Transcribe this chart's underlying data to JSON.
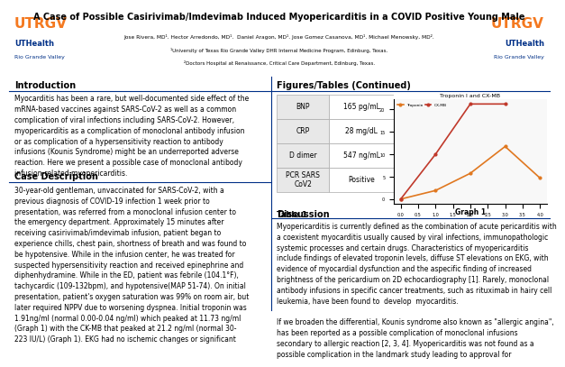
{
  "title": "A Case of Possible Casirivimab/Imdevimab Induced Myopericarditis in a COVID Positive Young Male",
  "authors": "Jose Rivera, MD¹. Hector Arredondo, MD¹.  Daniel Aragon, MD¹. Jose Gomez Casanova, MD¹. Michael Menowsky, MD².",
  "affiliation1": "¹University of Texas Rio Grande Valley DHR Internal Medicine Program, Edinburg, Texas.",
  "affiliation2": "²Doctors Hospital at Renaissance, Critical Care Department, Edinburg, Texas.",
  "header_bg": "#c8ddf0",
  "header_text_color": "#000000",
  "utrgv_text_color": "#f47920",
  "uthealth_text_color": "#003087",
  "section_header_color": "#000000",
  "intro_title": "Introduction",
  "intro_text": "Myocarditis has been a rare, but well-documented side effect of the\nmRNA-based vaccines against SARS-CoV-2 as well as a common\ncomplication of viral infections including SARS-CoV-2. However,\nmyopericarditis as a complication of monoclonal antibody infusion\nor as complication of a hypersensitivity reaction to antibody\ninfusions (Kounis Syndrome) might be an underreported adverse\nreaction. Here we present a possible case of monoclonal antibody\ninfusion-related myopericarditis.",
  "case_title": "Case Description",
  "case_text": "30-year-old gentleman, unvaccinated for SARS-CoV-2, with a\nprevious diagnosis of COVID-19 infection 1 week prior to\npresentation, was referred from a monoclonal infusion center to\nthe emergency department. Approximately 15 minutes after\nreceiving casirivimab/imdevimab infusion, patient began to\nexperience chills, chest pain, shortness of breath and was found to\nbe hypotensive. While in the infusion center, he was treated for\nsuspected hypersensitivity reaction and received epinephrine and\ndiphenhydramine. While in the ED, patient was febrile (104.1°F),\ntachycardic (109-132bpm), and hypotensive(MAP 51-74). On initial\npresentation, patient's oxygen saturation was 99% on room air, but\nlater required NPPV due to worsening dyspnea. Initial troponin was\n1.91ng/ml (normal 0.00-0.04 ng/ml) which peaked at 11.73 ng/ml\n(Graph 1) with the CK-MB that peaked at 21.2 ng/ml (normal 30-\n223 IU/L) (Graph 1). EKG had no ischemic changes or significant",
  "figures_title": "Figures/Tables (Continued)",
  "table_data": [
    [
      "BNP",
      "165 pg/mL"
    ],
    [
      "CRP",
      "28 mg/dL"
    ],
    [
      "D dimer",
      "547 ng/mL"
    ],
    [
      "PCR SARS\nCoV2",
      "Positive"
    ]
  ],
  "table1_label": "Table 1",
  "graph_title": "Troponin I and CX-MB",
  "troponin_vals": [
    0,
    1.91,
    5.75,
    11.73,
    4.7
  ],
  "troponin_label": "Troponin",
  "ckmb_vals": [
    0,
    10,
    21.2,
    21.2
  ],
  "ckmb_label": "CX-MB",
  "troponin_color": "#e07820",
  "ckmb_color": "#c0392b",
  "graph1_label": "Graph 1",
  "discussion_title": "Discussion",
  "discussion_text": "Myopericarditis is currently defined as the combination of acute pericarditis with\na coexistent myocarditis usually caused by viral infections, immunopathologic\nsystemic processes and certain drugs. Characteristics of myopericarditis\ninclude findings of elevated troponin levels, diffuse ST elevations on EKG, with\nevidence of myocardial dysfunction and the aspecific finding of increased\nbrightness of the pericardium on 2D echocardiography [1]. Rarely, monoclonal\nantibody infusions in specific cancer treatments, such as rituximab in hairy cell\nleukemia, have been found to  develop  myocarditis.\n\nIf we broaden the differential, Kounis syndrome also known as \"allergic angina\",\nhas been reported as a possible complication of monoclonal infusions\nsecondary to allergic reaction [2, 3, 4]. Myopericarditis was not found as a\npossible complication in the landmark study leading to approval for",
  "bg_color": "#ffffff",
  "divider_color": "#003087",
  "section_underline_color": "#003087",
  "body_font_size": 5.5,
  "section_font_size": 7.0
}
